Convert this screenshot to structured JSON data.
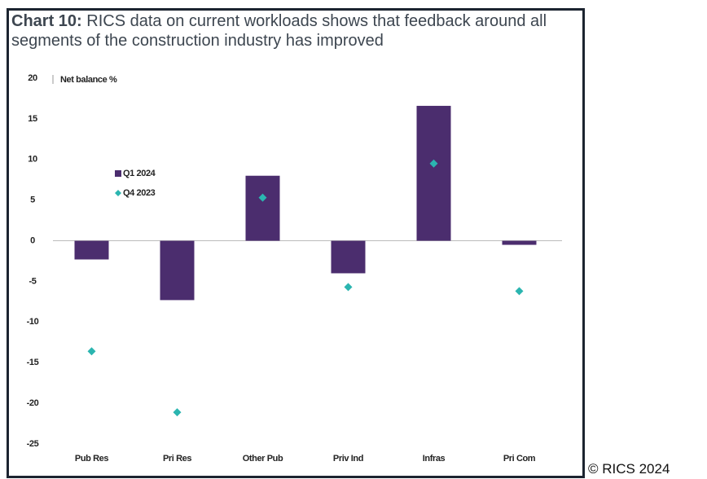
{
  "chart_data": {
    "type": "bar",
    "chart_label": "Chart 10:",
    "title": "RICS data on current workloads shows that feedback around all segments of the construction industry has improved",
    "y_label": "Net balance %",
    "source": "© RICS 2024",
    "categories": [
      "Pub Res",
      "Pri Res",
      "Other Pub",
      "Priv Ind",
      "Infras",
      "Pri Com"
    ],
    "series": [
      {
        "name": "Q1 2024",
        "type": "bar",
        "color": "#4b2d6e",
        "values": [
          -2.3,
          -7.3,
          8.0,
          -4.0,
          16.6,
          -0.5
        ]
      },
      {
        "name": "Q4 2023",
        "type": "scatter",
        "color": "#2bb5b0",
        "values": [
          -13.6,
          -21.1,
          5.3,
          -5.7,
          9.5,
          -6.2
        ]
      }
    ],
    "ylim": [
      -25,
      20
    ],
    "yticks": [
      -25,
      -20,
      -15,
      -10,
      -5,
      0,
      5,
      10,
      15,
      20
    ],
    "grid": false
  }
}
